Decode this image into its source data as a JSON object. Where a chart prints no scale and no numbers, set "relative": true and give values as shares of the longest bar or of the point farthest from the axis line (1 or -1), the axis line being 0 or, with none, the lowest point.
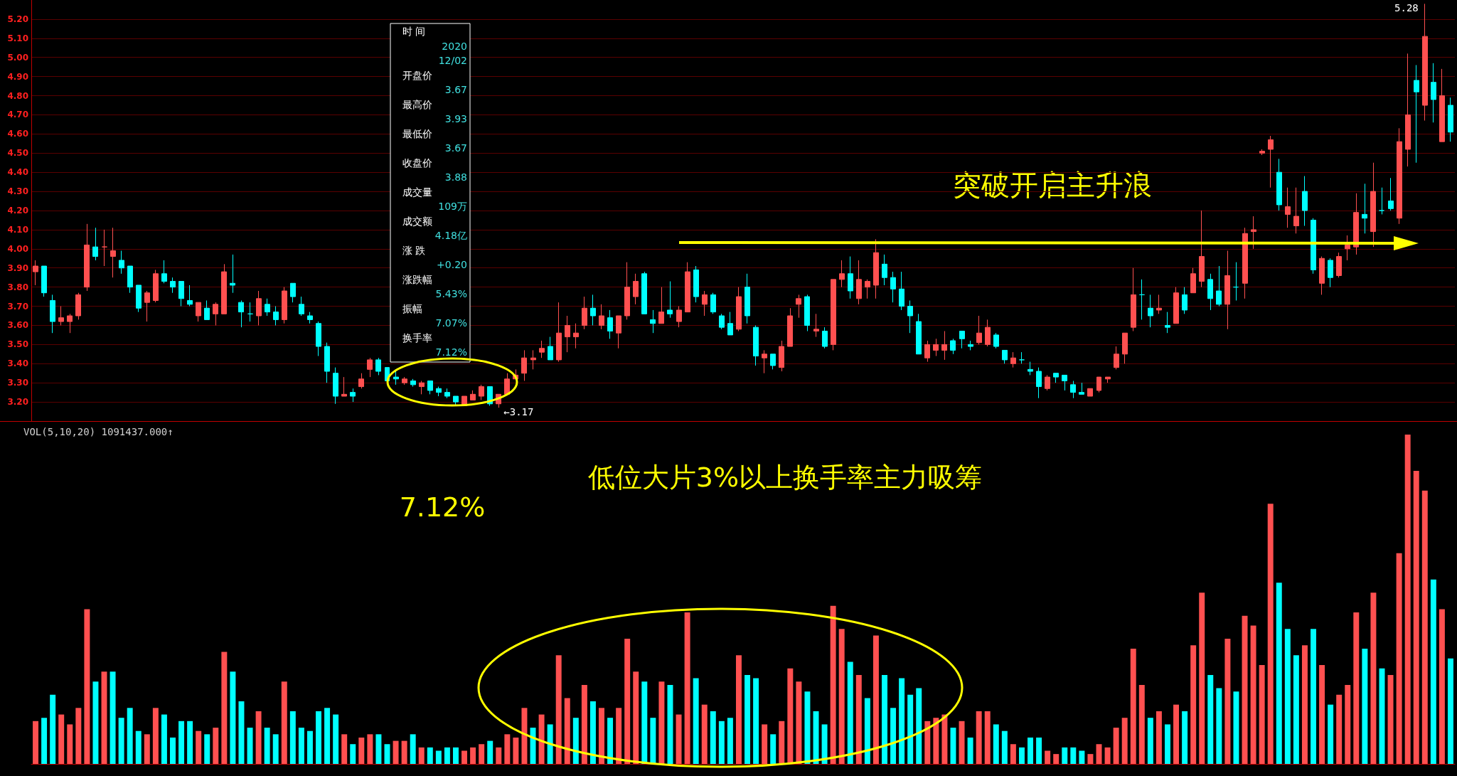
{
  "chart_data": [
    {
      "type": "candlestick",
      "categories": [
        null,
        null,
        null,
        null,
        null,
        null,
        null,
        null,
        null,
        null,
        null,
        null,
        null,
        null,
        null,
        null,
        null,
        null,
        null,
        null,
        null,
        null,
        null,
        null,
        null,
        null,
        null,
        null,
        null,
        null,
        null,
        null,
        null,
        null,
        null,
        null,
        null,
        null,
        null,
        null,
        null,
        null,
        null,
        null,
        null,
        null,
        null,
        null,
        null,
        null,
        null,
        null,
        null,
        null,
        null,
        null,
        null,
        null,
        null,
        null,
        null,
        null,
        null,
        null,
        null,
        null,
        null,
        null,
        null,
        null,
        null,
        null,
        null,
        null,
        null,
        null,
        null,
        null,
        null,
        null,
        null,
        null,
        null,
        null,
        null,
        null,
        null,
        null,
        null,
        null,
        null,
        null,
        null,
        null,
        null,
        null,
        null,
        null,
        null,
        null,
        null,
        null,
        null,
        null,
        null,
        null,
        null,
        null,
        null,
        null,
        null,
        null,
        null,
        null,
        null,
        null,
        null,
        null,
        null,
        null,
        null,
        null,
        null,
        null,
        null,
        null,
        null,
        null,
        null,
        null,
        null,
        null,
        null,
        null,
        null,
        null,
        null,
        null,
        null,
        null,
        null,
        null,
        null,
        null,
        null,
        null,
        null,
        null,
        null,
        null,
        null,
        null,
        null,
        null,
        null,
        null,
        null,
        null,
        null,
        null,
        null,
        null,
        null,
        null,
        null,
        null
      ],
      "ohlc": [
        [
          3.88,
          3.94,
          3.81,
          3.91
        ],
        [
          3.91,
          3.91,
          3.75,
          3.77
        ],
        [
          3.73,
          3.76,
          3.56,
          3.62
        ],
        [
          3.62,
          3.7,
          3.6,
          3.64
        ],
        [
          3.62,
          3.66,
          3.56,
          3.65
        ],
        [
          3.65,
          3.77,
          3.63,
          3.76
        ],
        [
          3.8,
          4.13,
          3.78,
          4.02
        ],
        [
          4.01,
          4.11,
          3.94,
          3.96
        ],
        [
          4.01,
          4.1,
          3.91,
          4.01
        ],
        [
          3.96,
          4.11,
          3.85,
          3.99
        ],
        [
          3.94,
          3.99,
          3.87,
          3.9
        ],
        [
          3.91,
          3.91,
          3.77,
          3.8
        ],
        [
          3.81,
          3.81,
          3.67,
          3.69
        ],
        [
          3.72,
          3.78,
          3.62,
          3.77
        ],
        [
          3.73,
          3.89,
          3.72,
          3.87
        ],
        [
          3.87,
          3.94,
          3.82,
          3.83
        ],
        [
          3.83,
          3.85,
          3.77,
          3.8
        ],
        [
          3.83,
          3.83,
          3.7,
          3.74
        ],
        [
          3.73,
          3.81,
          3.7,
          3.71
        ],
        [
          3.65,
          3.72,
          3.62,
          3.72
        ],
        [
          3.69,
          3.73,
          3.63,
          3.63
        ],
        [
          3.66,
          3.72,
          3.6,
          3.71
        ],
        [
          3.66,
          3.92,
          3.66,
          3.88
        ],
        [
          3.82,
          3.97,
          3.77,
          3.81
        ],
        [
          3.72,
          3.73,
          3.59,
          3.67
        ],
        [
          3.66,
          3.72,
          3.62,
          3.66
        ],
        [
          3.65,
          3.78,
          3.6,
          3.74
        ],
        [
          3.71,
          3.74,
          3.65,
          3.67
        ],
        [
          3.67,
          3.7,
          3.6,
          3.63
        ],
        [
          3.63,
          3.8,
          3.61,
          3.78
        ],
        [
          3.82,
          3.82,
          3.72,
          3.75
        ],
        [
          3.71,
          3.75,
          3.65,
          3.66
        ],
        [
          3.65,
          3.67,
          3.61,
          3.63
        ],
        [
          3.61,
          3.62,
          3.44,
          3.49
        ],
        [
          3.49,
          3.51,
          3.3,
          3.36
        ],
        [
          3.35,
          3.38,
          3.19,
          3.23
        ],
        [
          3.23,
          3.33,
          3.23,
          3.24
        ],
        [
          3.25,
          3.27,
          3.2,
          3.23
        ],
        [
          3.28,
          3.35,
          3.27,
          3.32
        ],
        [
          3.37,
          3.43,
          3.33,
          3.42
        ],
        [
          3.42,
          3.43,
          3.34,
          3.36
        ],
        [
          3.38,
          3.38,
          3.3,
          3.31
        ],
        [
          3.33,
          3.37,
          3.29,
          3.32
        ],
        [
          3.3,
          3.33,
          3.29,
          3.32
        ],
        [
          3.31,
          3.32,
          3.28,
          3.29
        ],
        [
          3.28,
          3.31,
          3.24,
          3.3
        ],
        [
          3.31,
          3.31,
          3.24,
          3.26
        ],
        [
          3.27,
          3.28,
          3.23,
          3.25
        ],
        [
          3.25,
          3.27,
          3.22,
          3.23
        ],
        [
          3.23,
          3.23,
          3.18,
          3.2
        ],
        [
          3.18,
          3.23,
          3.18,
          3.23
        ],
        [
          3.21,
          3.26,
          3.21,
          3.24
        ],
        [
          3.23,
          3.29,
          3.21,
          3.28
        ],
        [
          3.28,
          3.28,
          3.18,
          3.19
        ],
        [
          3.19,
          3.24,
          3.17,
          3.24
        ],
        [
          3.24,
          3.35,
          3.24,
          3.32
        ],
        [
          3.32,
          3.37,
          3.32,
          3.34
        ],
        [
          3.35,
          3.47,
          3.31,
          3.43
        ],
        [
          3.42,
          3.47,
          3.37,
          3.43
        ],
        [
          3.46,
          3.52,
          3.43,
          3.48
        ],
        [
          3.49,
          3.54,
          3.42,
          3.42
        ],
        [
          3.42,
          3.72,
          3.41,
          3.56
        ],
        [
          3.54,
          3.65,
          3.46,
          3.6
        ],
        [
          3.54,
          3.61,
          3.48,
          3.56
        ],
        [
          3.6,
          3.75,
          3.58,
          3.69
        ],
        [
          3.69,
          3.76,
          3.6,
          3.65
        ],
        [
          3.6,
          3.71,
          3.58,
          3.65
        ],
        [
          3.64,
          3.68,
          3.53,
          3.57
        ],
        [
          3.56,
          3.65,
          3.48,
          3.65
        ],
        [
          3.65,
          3.93,
          3.63,
          3.8
        ],
        [
          3.75,
          3.87,
          3.71,
          3.83
        ],
        [
          3.87,
          3.88,
          3.66,
          3.66
        ],
        [
          3.63,
          3.68,
          3.56,
          3.61
        ],
        [
          3.61,
          3.8,
          3.61,
          3.67
        ],
        [
          3.68,
          3.83,
          3.64,
          3.66
        ],
        [
          3.62,
          3.7,
          3.59,
          3.68
        ],
        [
          3.67,
          3.93,
          3.67,
          3.88
        ],
        [
          3.89,
          3.91,
          3.72,
          3.75
        ],
        [
          3.71,
          3.78,
          3.65,
          3.76
        ],
        [
          3.76,
          3.77,
          3.66,
          3.67
        ],
        [
          3.65,
          3.66,
          3.58,
          3.59
        ],
        [
          3.61,
          3.67,
          3.55,
          3.55
        ],
        [
          3.58,
          3.8,
          3.57,
          3.75
        ],
        [
          3.8,
          3.87,
          3.61,
          3.65
        ],
        [
          3.59,
          3.6,
          3.39,
          3.44
        ],
        [
          3.43,
          3.47,
          3.35,
          3.45
        ],
        [
          3.45,
          3.45,
          3.37,
          3.39
        ],
        [
          3.38,
          3.52,
          3.36,
          3.49
        ],
        [
          3.49,
          3.69,
          3.49,
          3.65
        ],
        [
          3.71,
          3.76,
          3.64,
          3.74
        ],
        [
          3.75,
          3.76,
          3.57,
          3.6
        ],
        [
          3.57,
          3.66,
          3.54,
          3.58
        ],
        [
          3.57,
          3.59,
          3.48,
          3.49
        ],
        [
          3.5,
          3.84,
          3.47,
          3.84
        ],
        [
          3.84,
          3.94,
          3.8,
          3.87
        ],
        [
          3.87,
          3.96,
          3.74,
          3.78
        ],
        [
          3.74,
          3.94,
          3.71,
          3.84
        ],
        [
          3.8,
          3.84,
          3.74,
          3.83
        ],
        [
          3.81,
          4.05,
          3.74,
          3.98
        ],
        [
          3.92,
          3.97,
          3.81,
          3.85
        ],
        [
          3.85,
          3.88,
          3.72,
          3.79
        ],
        [
          3.79,
          3.88,
          3.68,
          3.7
        ],
        [
          3.7,
          3.73,
          3.56,
          3.65
        ],
        [
          3.62,
          3.66,
          3.45,
          3.45
        ],
        [
          3.43,
          3.52,
          3.41,
          3.5
        ],
        [
          3.47,
          3.53,
          3.44,
          3.5
        ],
        [
          3.47,
          3.57,
          3.42,
          3.5
        ],
        [
          3.52,
          3.53,
          3.45,
          3.47
        ],
        [
          3.57,
          3.57,
          3.48,
          3.53
        ],
        [
          3.5,
          3.52,
          3.47,
          3.49
        ],
        [
          3.51,
          3.65,
          3.5,
          3.56
        ],
        [
          3.5,
          3.63,
          3.49,
          3.59
        ],
        [
          3.55,
          3.56,
          3.48,
          3.49
        ],
        [
          3.47,
          3.47,
          3.4,
          3.42
        ],
        [
          3.4,
          3.46,
          3.38,
          3.43
        ],
        [
          3.42,
          3.46,
          3.4,
          3.42
        ],
        [
          3.37,
          3.41,
          3.34,
          3.36
        ],
        [
          3.36,
          3.38,
          3.22,
          3.28
        ],
        [
          3.27,
          3.34,
          3.26,
          3.33
        ],
        [
          3.35,
          3.35,
          3.3,
          3.33
        ],
        [
          3.34,
          3.34,
          3.26,
          3.31
        ],
        [
          3.29,
          3.31,
          3.22,
          3.25
        ],
        [
          3.25,
          3.3,
          3.24,
          3.24
        ],
        [
          3.23,
          3.27,
          3.23,
          3.27
        ],
        [
          3.26,
          3.33,
          3.25,
          3.33
        ],
        [
          3.32,
          3.33,
          3.3,
          3.33
        ],
        [
          3.38,
          3.49,
          3.37,
          3.45
        ],
        [
          3.45,
          3.56,
          3.4,
          3.56
        ],
        [
          3.59,
          3.9,
          3.57,
          3.76
        ],
        [
          3.76,
          3.84,
          3.63,
          3.76
        ],
        [
          3.69,
          3.76,
          3.59,
          3.65
        ],
        [
          3.68,
          3.76,
          3.66,
          3.69
        ],
        [
          3.6,
          3.67,
          3.56,
          3.59
        ],
        [
          3.61,
          3.8,
          3.61,
          3.77
        ],
        [
          3.76,
          3.8,
          3.66,
          3.68
        ],
        [
          3.77,
          3.9,
          3.77,
          3.87
        ],
        [
          3.83,
          4.2,
          3.8,
          3.96
        ],
        [
          3.84,
          3.87,
          3.68,
          3.74
        ],
        [
          3.78,
          3.91,
          3.7,
          3.71
        ],
        [
          3.71,
          3.99,
          3.58,
          3.86
        ],
        [
          3.8,
          3.93,
          3.73,
          3.8
        ],
        [
          3.82,
          4.11,
          3.74,
          4.08
        ],
        [
          4.09,
          4.17,
          4.0,
          4.1
        ],
        [
          4.5,
          4.52,
          4.49,
          4.51
        ],
        [
          4.52,
          4.59,
          4.32,
          4.57
        ],
        [
          4.4,
          4.47,
          4.2,
          4.23
        ],
        [
          4.18,
          4.32,
          4.11,
          4.22
        ],
        [
          4.12,
          4.32,
          4.08,
          4.17
        ],
        [
          4.3,
          4.38,
          4.12,
          4.2
        ],
        [
          4.15,
          4.16,
          3.87,
          3.89
        ],
        [
          3.82,
          3.96,
          3.76,
          3.95
        ],
        [
          3.94,
          3.95,
          3.8,
          3.85
        ],
        [
          3.86,
          3.98,
          3.85,
          3.96
        ],
        [
          4.0,
          4.07,
          3.94,
          4.02
        ],
        [
          4.01,
          4.29,
          3.97,
          4.19
        ],
        [
          4.18,
          4.34,
          4.08,
          4.16
        ],
        [
          4.09,
          4.45,
          4.01,
          4.3
        ],
        [
          4.2,
          4.32,
          4.18,
          4.2
        ],
        [
          4.25,
          4.37,
          4.2,
          4.21
        ],
        [
          4.16,
          4.63,
          4.13,
          4.56
        ],
        [
          4.52,
          5.02,
          4.43,
          4.7
        ],
        [
          4.88,
          4.96,
          4.45,
          4.82
        ],
        [
          4.75,
          5.28,
          4.67,
          5.11
        ],
        [
          4.87,
          4.97,
          4.66,
          4.78
        ],
        [
          4.56,
          4.94,
          4.56,
          4.8
        ],
        [
          4.75,
          4.79,
          4.56,
          4.61
        ]
      ],
      "colors": [
        "#ff5050",
        "#00ffff",
        "#00ffff",
        "#ff5050",
        "#ff5050",
        "#ff5050",
        "#ff5050",
        "#00ffff",
        "#ff5050",
        "#ff5050",
        "#00ffff",
        "#00ffff",
        "#00ffff",
        "#ff5050",
        "#ff5050",
        "#00ffff",
        "#00ffff",
        "#00ffff",
        "#00ffff",
        "#ff5050",
        "#00ffff",
        "#ff5050",
        "#ff5050",
        "#00ffff",
        "#00ffff",
        "#00ffff",
        "#ff5050",
        "#00ffff",
        "#00ffff",
        "#ff5050",
        "#00ffff",
        "#00ffff",
        "#00ffff",
        "#00ffff",
        "#00ffff",
        "#00ffff",
        "#ff5050",
        "#00ffff",
        "#ff5050",
        "#ff5050",
        "#00ffff",
        "#00ffff",
        "#00ffff",
        "#ff5050",
        "#00ffff",
        "#ff5050",
        "#00ffff",
        "#00ffff",
        "#00ffff",
        "#00ffff",
        "#ff5050",
        "#ff5050",
        "#ff5050",
        "#00ffff",
        "#ff5050",
        "#ff5050",
        "#ff5050",
        "#ff5050",
        "#ff5050",
        "#ff5050",
        "#00ffff",
        "#ff5050",
        "#ff5050",
        "#ff5050",
        "#ff5050",
        "#00ffff",
        "#ff5050",
        "#00ffff",
        "#ff5050",
        "#ff5050",
        "#ff5050",
        "#00ffff",
        "#00ffff",
        "#ff5050",
        "#00ffff",
        "#ff5050",
        "#ff5050",
        "#00ffff",
        "#ff5050",
        "#00ffff",
        "#00ffff",
        "#00ffff",
        "#ff5050",
        "#00ffff",
        "#00ffff",
        "#ff5050",
        "#00ffff",
        "#ff5050",
        "#ff5050",
        "#ff5050",
        "#00ffff",
        "#ff5050",
        "#00ffff",
        "#ff5050",
        "#ff5050",
        "#00ffff",
        "#ff5050",
        "#ff5050",
        "#ff5050",
        "#00ffff",
        "#00ffff",
        "#00ffff",
        "#00ffff",
        "#00ffff",
        "#ff5050",
        "#ff5050",
        "#ff5050",
        "#00ffff",
        "#00ffff",
        "#00ffff",
        "#ff5050",
        "#ff5050",
        "#00ffff",
        "#00ffff",
        "#ff5050",
        "#00ffff",
        "#00ffff",
        "#00ffff",
        "#ff5050",
        "#00ffff",
        "#00ffff",
        "#00ffff",
        "#00ffff",
        "#ff5050",
        "#ff5050",
        "#ff5050",
        "#ff5050",
        "#ff5050",
        "#ff5050",
        "#00ffff",
        "#00ffff",
        "#ff5050",
        "#00ffff",
        "#ff5050",
        "#00ffff",
        "#ff5050",
        "#ff5050",
        "#00ffff",
        "#00ffff",
        "#ff5050",
        "#00ffff",
        "#ff5050",
        "#ff5050",
        "#ff5050",
        "#ff5050",
        "#00ffff",
        "#ff5050",
        "#ff5050",
        "#00ffff",
        "#00ffff",
        "#ff5050",
        "#00ffff",
        "#ff5050",
        "#ff5050",
        "#ff5050",
        "#00ffff",
        "#ff5050",
        "#00ffff",
        "#00ffff",
        "#ff5050",
        "#ff5050",
        "#00ffff",
        "#ff5050",
        "#00ffff",
        "#ff5050",
        "#00ffff"
      ],
      "ylim": [
        3.1,
        5.3
      ],
      "yticks": [
        {
          "value": 3.2,
          "label": "3.20"
        },
        {
          "value": 3.3,
          "label": "3.30"
        },
        {
          "value": 3.4,
          "label": "3.40"
        },
        {
          "value": 3.5,
          "label": "3.50"
        },
        {
          "value": 3.6,
          "label": "3.60"
        },
        {
          "value": 3.7,
          "label": "3.70"
        },
        {
          "value": 3.8,
          "label": "3.80"
        },
        {
          "value": 3.9,
          "label": "3.90"
        },
        {
          "value": 4.0,
          "label": "4.00"
        },
        {
          "value": 4.1,
          "label": "4.10"
        },
        {
          "value": 4.2,
          "label": "4.20"
        },
        {
          "value": 4.3,
          "label": "4.30"
        },
        {
          "value": 4.4,
          "label": "4.40"
        },
        {
          "value": 4.5,
          "label": "4.50"
        },
        {
          "value": 4.6,
          "label": "4.60"
        },
        {
          "value": 4.7,
          "label": "4.70"
        },
        {
          "value": 4.8,
          "label": "4.80"
        },
        {
          "value": 4.9,
          "label": "4.90"
        },
        {
          "value": 5.0,
          "label": "5.00"
        },
        {
          "value": 5.1,
          "label": "5.10"
        },
        {
          "value": 5.2,
          "label": "5.20"
        }
      ],
      "grid": "y",
      "tick_labels": "y",
      "annotations": [
        "突破开启主升浪",
        "←3.17",
        "5.28",
        "时 间",
        "2020",
        "12/02",
        "开盘价",
        "3.67",
        "最高价",
        "3.93",
        "最低价",
        "3.67",
        "收盘价",
        "3.88",
        "成交量",
        "109万",
        "成交额",
        "4.18亿",
        "涨 跌",
        "+0.20",
        "涨跌幅",
        "5.43%",
        "振幅",
        "7.07%",
        "换手率",
        "7.12%"
      ]
    },
    {
      "type": "bar",
      "relative": true,
      "title": "VOL(5,10,20) 1091437.000↑",
      "categories": [
        null,
        null,
        null,
        null,
        null,
        null,
        null,
        null,
        null,
        null,
        null,
        null,
        null,
        null,
        null,
        null,
        null,
        null,
        null,
        null,
        null,
        null,
        null,
        null,
        null,
        null,
        null,
        null,
        null,
        null,
        null,
        null,
        null,
        null,
        null,
        null,
        null,
        null,
        null,
        null,
        null,
        null,
        null,
        null,
        null,
        null,
        null,
        null,
        null,
        null,
        null,
        null,
        null,
        null,
        null,
        null,
        null,
        null,
        null,
        null,
        null,
        null,
        null,
        null,
        null,
        null,
        null,
        null,
        null,
        null,
        null,
        null,
        null,
        null,
        null,
        null,
        null,
        null,
        null,
        null,
        null,
        null,
        null,
        null,
        null,
        null,
        null,
        null,
        null,
        null,
        null,
        null,
        null,
        null,
        null,
        null,
        null,
        null,
        null,
        null,
        null,
        null,
        null,
        null,
        null,
        null,
        null,
        null,
        null,
        null,
        null,
        null,
        null,
        null,
        null,
        null,
        null,
        null,
        null,
        null,
        null,
        null,
        null,
        null,
        null,
        null,
        null,
        null,
        null,
        null,
        null,
        null,
        null,
        null,
        null,
        null,
        null,
        null,
        null,
        null,
        null,
        null,
        null,
        null,
        null,
        null,
        null,
        null,
        null,
        null,
        null,
        null,
        null,
        null,
        null,
        null,
        null,
        null,
        null,
        null,
        null,
        null,
        null,
        null,
        null,
        null
      ],
      "values": [
        0.13,
        0.14,
        0.21,
        0.15,
        0.12,
        0.17,
        0.47,
        0.25,
        0.28,
        0.28,
        0.14,
        0.17,
        0.1,
        0.09,
        0.17,
        0.15,
        0.08,
        0.13,
        0.13,
        0.1,
        0.09,
        0.11,
        0.34,
        0.28,
        0.19,
        0.11,
        0.16,
        0.11,
        0.09,
        0.25,
        0.16,
        0.11,
        0.1,
        0.16,
        0.17,
        0.15,
        0.09,
        0.06,
        0.08,
        0.09,
        0.09,
        0.06,
        0.07,
        0.07,
        0.09,
        0.05,
        0.05,
        0.04,
        0.05,
        0.05,
        0.04,
        0.05,
        0.06,
        0.07,
        0.05,
        0.09,
        0.08,
        0.17,
        0.11,
        0.15,
        0.12,
        0.33,
        0.2,
        0.14,
        0.24,
        0.19,
        0.17,
        0.14,
        0.17,
        0.38,
        0.28,
        0.25,
        0.14,
        0.25,
        0.24,
        0.15,
        0.46,
        0.26,
        0.18,
        0.16,
        0.13,
        0.14,
        0.33,
        0.27,
        0.26,
        0.12,
        0.09,
        0.13,
        0.29,
        0.25,
        0.22,
        0.16,
        0.12,
        0.48,
        0.41,
        0.31,
        0.27,
        0.2,
        0.39,
        0.27,
        0.17,
        0.26,
        0.21,
        0.23,
        0.13,
        0.14,
        0.15,
        0.11,
        0.13,
        0.08,
        0.16,
        0.16,
        0.12,
        0.1,
        0.06,
        0.05,
        0.08,
        0.08,
        0.04,
        0.03,
        0.05,
        0.05,
        0.04,
        0.03,
        0.06,
        0.05,
        0.11,
        0.14,
        0.35,
        0.24,
        0.14,
        0.16,
        0.12,
        0.18,
        0.16,
        0.36,
        0.52,
        0.27,
        0.23,
        0.38,
        0.22,
        0.45,
        0.42,
        0.3,
        0.79,
        0.55,
        0.41,
        0.33,
        0.36,
        0.41,
        0.3,
        0.18,
        0.21,
        0.24,
        0.46,
        0.35,
        0.52,
        0.29,
        0.27,
        0.64,
        1,
        0.89,
        0.83,
        0.56,
        0.47,
        0.32
      ],
      "colors": [
        "#ff5050",
        "#00ffff",
        "#00ffff",
        "#ff5050",
        "#ff5050",
        "#ff5050",
        "#ff5050",
        "#00ffff",
        "#ff5050",
        "#00ffff",
        "#00ffff",
        "#00ffff",
        "#00ffff",
        "#ff5050",
        "#ff5050",
        "#00ffff",
        "#00ffff",
        "#00ffff",
        "#00ffff",
        "#ff5050",
        "#00ffff",
        "#ff5050",
        "#ff5050",
        "#00ffff",
        "#00ffff",
        "#00ffff",
        "#ff5050",
        "#00ffff",
        "#00ffff",
        "#ff5050",
        "#00ffff",
        "#00ffff",
        "#00ffff",
        "#00ffff",
        "#00ffff",
        "#00ffff",
        "#ff5050",
        "#00ffff",
        "#ff5050",
        "#ff5050",
        "#00ffff",
        "#00ffff",
        "#ff5050",
        "#ff5050",
        "#00ffff",
        "#ff5050",
        "#00ffff",
        "#00ffff",
        "#00ffff",
        "#00ffff",
        "#ff5050",
        "#ff5050",
        "#ff5050",
        "#00ffff",
        "#ff5050",
        "#ff5050",
        "#ff5050",
        "#ff5050",
        "#00ffff",
        "#ff5050",
        "#00ffff",
        "#ff5050",
        "#ff5050",
        "#00ffff",
        "#ff5050",
        "#00ffff",
        "#ff5050",
        "#00ffff",
        "#ff5050",
        "#ff5050",
        "#ff5050",
        "#00ffff",
        "#00ffff",
        "#ff5050",
        "#00ffff",
        "#ff5050",
        "#ff5050",
        "#00ffff",
        "#ff5050",
        "#00ffff",
        "#00ffff",
        "#00ffff",
        "#ff5050",
        "#00ffff",
        "#00ffff",
        "#ff5050",
        "#00ffff",
        "#ff5050",
        "#ff5050",
        "#ff5050",
        "#00ffff",
        "#00ffff",
        "#00ffff",
        "#ff5050",
        "#ff5050",
        "#00ffff",
        "#ff5050",
        "#00ffff",
        "#ff5050",
        "#00ffff",
        "#00ffff",
        "#00ffff",
        "#00ffff",
        "#00ffff",
        "#ff5050",
        "#ff5050",
        "#ff5050",
        "#00ffff",
        "#ff5050",
        "#00ffff",
        "#ff5050",
        "#ff5050",
        "#00ffff",
        "#00ffff",
        "#ff5050",
        "#00ffff",
        "#00ffff",
        "#00ffff",
        "#ff5050",
        "#ff5050",
        "#00ffff",
        "#00ffff",
        "#00ffff",
        "#ff5050",
        "#ff5050",
        "#ff5050",
        "#ff5050",
        "#ff5050",
        "#ff5050",
        "#ff5050",
        "#00ffff",
        "#ff5050",
        "#00ffff",
        "#ff5050",
        "#00ffff",
        "#ff5050",
        "#ff5050",
        "#00ffff",
        "#00ffff",
        "#ff5050",
        "#00ffff",
        "#ff5050",
        "#ff5050",
        "#ff5050",
        "#ff5050",
        "#00ffff",
        "#00ffff",
        "#00ffff",
        "#ff5050",
        "#00ffff",
        "#ff5050",
        "#00ffff",
        "#ff5050",
        "#ff5050",
        "#ff5050",
        "#00ffff",
        "#ff5050",
        "#00ffff",
        "#ff5050",
        "#ff5050",
        "#ff5050",
        "#ff5050",
        "#ff5050",
        "#00ffff",
        "#ff5050",
        "#00ffff"
      ],
      "tick_labels": false,
      "annotations": [
        "低位大片3%以上换手率主力吸筹",
        "7.12%"
      ]
    }
  ]
}
